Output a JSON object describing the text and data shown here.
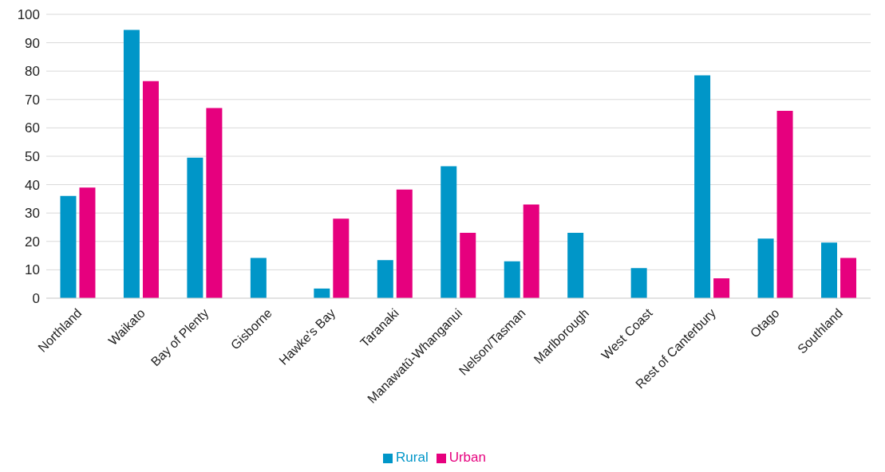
{
  "chart_data": {
    "type": "bar",
    "categories": [
      "Northland",
      "Waikato",
      "Bay of Plenty",
      "Gisborne",
      "Hawke's Bay",
      "Taranaki",
      "Manawatū-Whanganui",
      "Nelson/Tasman",
      "Marlborough",
      "West Coast",
      "Rest of Canterbury",
      "Otago",
      "Southland"
    ],
    "series": [
      {
        "name": "Rural",
        "color": "#0096c8",
        "values": [
          36,
          94.5,
          49.5,
          14.2,
          3.4,
          13.4,
          46.5,
          13,
          23,
          10.6,
          78.5,
          21,
          19.6
        ]
      },
      {
        "name": "Urban",
        "color": "#e6007e",
        "values": [
          39,
          76.5,
          67,
          null,
          28,
          38.3,
          23,
          33,
          null,
          null,
          7,
          66,
          14.2
        ]
      }
    ],
    "ylim": [
      0,
      100
    ],
    "yticks": [
      0,
      10,
      20,
      30,
      40,
      50,
      60,
      70,
      80,
      90,
      100
    ],
    "grid": "y",
    "legend": "bottom"
  }
}
